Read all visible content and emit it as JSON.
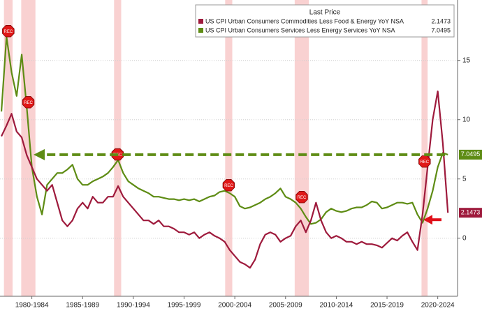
{
  "chart_data": {
    "type": "line",
    "legend_title": "Last Price",
    "x": [
      1979.5,
      1980,
      1980.5,
      1981,
      1981.5,
      1982,
      1982.5,
      1983,
      1983.5,
      1984,
      1984.5,
      1985,
      1985.5,
      1986,
      1986.5,
      1987,
      1987.5,
      1988,
      1988.5,
      1989,
      1989.5,
      1990,
      1990.5,
      1991,
      1991.5,
      1992,
      1992.5,
      1993,
      1993.5,
      1994,
      1994.5,
      1995,
      1995.5,
      1996,
      1996.5,
      1997,
      1997.5,
      1998,
      1998.5,
      1999,
      1999.5,
      2000,
      2000.5,
      2001,
      2001.5,
      2002,
      2002.5,
      2003,
      2003.5,
      2004,
      2004.5,
      2005,
      2005.5,
      2006,
      2006.5,
      2007,
      2007.5,
      2008,
      2008.5,
      2009,
      2009.5,
      2010,
      2010.5,
      2011,
      2011.5,
      2012,
      2012.5,
      2013,
      2013.5,
      2014,
      2014.5,
      2015,
      2015.5,
      2016,
      2016.5,
      2017,
      2017.5,
      2018,
      2018.5,
      2019,
      2019.5,
      2020,
      2020.5,
      2021,
      2021.5,
      2022,
      2022.5,
      2023,
      2023.5
    ],
    "series": [
      {
        "name": "US CPI Urban Consumers Commodities Less Food & Energy YoY NSA",
        "color": "#9e1a3c",
        "values": [
          8.6,
          9.5,
          10.5,
          9,
          8.5,
          7,
          6,
          5,
          4.5,
          4,
          4.5,
          3,
          1.5,
          1,
          1.5,
          2.5,
          3,
          2.5,
          3.5,
          3,
          3,
          3.5,
          3.5,
          4.4,
          3.5,
          3,
          2.5,
          2,
          1.5,
          1.5,
          1.2,
          1.5,
          1,
          1,
          0.8,
          0.5,
          0.5,
          0.3,
          0.5,
          0,
          0.3,
          0.5,
          0.2,
          0,
          -0.3,
          -1,
          -1.5,
          -2,
          -2.2,
          -2.5,
          -1.8,
          -0.5,
          0.3,
          0.5,
          0.3,
          -0.3,
          0,
          0.2,
          1,
          1.5,
          0.5,
          1.5,
          3,
          1.5,
          0.5,
          0,
          0.2,
          0,
          -0.3,
          -0.3,
          -0.5,
          -0.3,
          -0.5,
          -0.5,
          -0.6,
          -0.8,
          -0.4,
          0,
          -0.2,
          0.2,
          0.5,
          -0.3,
          -1,
          2,
          6,
          10,
          12.4,
          8,
          2.1473
        ]
      },
      {
        "name": "US CPI Urban Consumers Services Less Energy Services YoY NSA",
        "color": "#5e8c14",
        "values": [
          10.7,
          17,
          14,
          12,
          15.5,
          11,
          6,
          3.5,
          2,
          4.5,
          5,
          5.5,
          5.5,
          5.8,
          6.2,
          5,
          4.5,
          4.5,
          4.8,
          5,
          5.2,
          5.5,
          6,
          6.6,
          5.5,
          4.8,
          4.5,
          4.2,
          4,
          3.8,
          3.5,
          3.5,
          3.4,
          3.3,
          3.3,
          3.2,
          3.3,
          3.2,
          3.3,
          3.1,
          3.3,
          3.5,
          3.6,
          3.9,
          4,
          3.8,
          3.5,
          2.7,
          2.5,
          2.6,
          2.8,
          3,
          3.3,
          3.5,
          3.8,
          4.2,
          3.5,
          3.3,
          3,
          2.5,
          1.8,
          1.2,
          1.3,
          1.6,
          2.2,
          2.5,
          2.3,
          2.2,
          2.3,
          2.5,
          2.6,
          2.6,
          2.8,
          3.1,
          3,
          2.5,
          2.6,
          2.8,
          3,
          3,
          2.9,
          3,
          2,
          1.3,
          2.5,
          4,
          6,
          7.2,
          7.0495
        ]
      }
    ],
    "xlim": [
      1979.36,
      2024.45
    ],
    "xticks": [
      {
        "value": 1982.5,
        "label": "1980-1984"
      },
      {
        "value": 1987.5,
        "label": "1985-1989"
      },
      {
        "value": 1992.5,
        "label": "1990-1994"
      },
      {
        "value": 1997.5,
        "label": "1995-1999"
      },
      {
        "value": 2002.5,
        "label": "2000-2004"
      },
      {
        "value": 2007.5,
        "label": "2005-2009"
      },
      {
        "value": 2012.5,
        "label": "2010-2014"
      },
      {
        "value": 2017.5,
        "label": "2015-2019"
      },
      {
        "value": 2022.5,
        "label": "2020-2024"
      }
    ],
    "ylim": [
      -4.9,
      20.1
    ],
    "yticks": [
      0,
      5,
      10,
      15
    ],
    "grid": true,
    "recession_label": "REC",
    "recessions": [
      [
        1979.75,
        1980.6
      ],
      [
        1981.45,
        1982.85
      ],
      [
        1990.6,
        1991.3
      ],
      [
        2001.55,
        2002.25
      ],
      [
        2008.4,
        2009.8
      ],
      [
        2020.9,
        2021.5
      ]
    ]
  }
}
